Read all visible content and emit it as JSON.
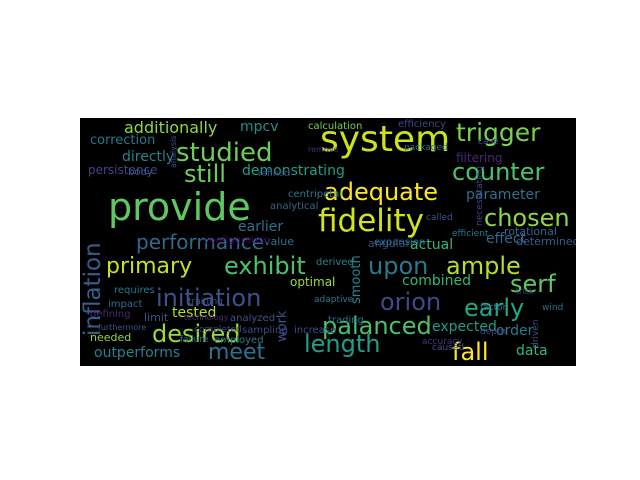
{
  "wordcloud": {
    "background": "#000000",
    "colormap": "viridis",
    "words": [
      {
        "text": "system",
        "color": "#cde11d"
      },
      {
        "text": "provide",
        "color": "#5ec962"
      },
      {
        "text": "fidelity",
        "color": "#d2e21b"
      },
      {
        "text": "trigger",
        "color": "#7ad151"
      },
      {
        "text": "studied",
        "color": "#6ccd5a"
      },
      {
        "text": "counter",
        "color": "#4ac16d"
      },
      {
        "text": "adequate",
        "color": "#fde725"
      },
      {
        "text": "chosen",
        "color": "#90d743"
      },
      {
        "text": "still",
        "color": "#6ece58"
      },
      {
        "text": "performance",
        "color": "#31688e"
      },
      {
        "text": "primary",
        "color": "#c8e020"
      },
      {
        "text": "exhibit",
        "color": "#4ac16d"
      },
      {
        "text": "upon",
        "color": "#2a788e"
      },
      {
        "text": "ample",
        "color": "#b5de2b"
      },
      {
        "text": "serf",
        "color": "#5ec962"
      },
      {
        "text": "initiation",
        "color": "#3b528b"
      },
      {
        "text": "orion",
        "color": "#3e4989"
      },
      {
        "text": "early",
        "color": "#22a884"
      },
      {
        "text": "palanced",
        "color": "#4ac16d"
      },
      {
        "text": "desired",
        "color": "#9bd93c"
      },
      {
        "text": "length",
        "color": "#1f9e89"
      },
      {
        "text": "meet",
        "color": "#2c728e"
      },
      {
        "text": "fall",
        "color": "#fde725"
      },
      {
        "text": "inflation",
        "color": "#355f8d"
      },
      {
        "text": "additionally",
        "color": "#8ed645"
      },
      {
        "text": "mpcv",
        "color": "#21918c"
      },
      {
        "text": "directly",
        "color": "#26828e"
      },
      {
        "text": "correction",
        "color": "#2a788e"
      },
      {
        "text": "demonstrating",
        "color": "#1f9e89"
      },
      {
        "text": "parameter",
        "color": "#2c728e"
      },
      {
        "text": "filtering",
        "color": "#482878"
      },
      {
        "text": "earlier",
        "color": "#2c728e"
      },
      {
        "text": "actual",
        "color": "#35b779"
      },
      {
        "text": "effect",
        "color": "#31688e"
      },
      {
        "text": "smooth",
        "color": "#26828e"
      },
      {
        "text": "combined",
        "color": "#35b779"
      },
      {
        "text": "tested",
        "color": "#b5de2b"
      },
      {
        "text": "expected",
        "color": "#1f9e89"
      },
      {
        "text": "order",
        "color": "#2a788e"
      },
      {
        "text": "data",
        "color": "#35b779"
      },
      {
        "text": "outperforms",
        "color": "#26828e"
      },
      {
        "text": "optimal",
        "color": "#a2da37"
      },
      {
        "text": "work",
        "color": "#3b528b"
      },
      {
        "text": "value",
        "color": "#2c728e"
      },
      {
        "text": "persistence",
        "color": "#414487"
      },
      {
        "text": "rotational",
        "color": "#31688e"
      },
      {
        "text": "determined",
        "color": "#355f8d"
      },
      {
        "text": "angular",
        "color": "#3e4989"
      },
      {
        "text": "needed",
        "color": "#90d743"
      },
      {
        "text": "limit",
        "color": "#39568c"
      },
      {
        "text": "defining",
        "color": "#482878"
      },
      {
        "text": "requires",
        "color": "#2a788e"
      },
      {
        "text": "impact",
        "color": "#2c728e"
      },
      {
        "text": "derived",
        "color": "#26828e"
      },
      {
        "text": "centripetal",
        "color": "#2a788e"
      },
      {
        "text": "analytical",
        "color": "#31688e"
      },
      {
        "text": "calculation",
        "color": "#7ad151"
      },
      {
        "text": "expansion",
        "color": "#2c728e"
      },
      {
        "text": "efficiency",
        "color": "#414487"
      },
      {
        "text": "called",
        "color": "#3b528b"
      },
      {
        "text": "efficient",
        "color": "#2a788e"
      },
      {
        "text": "increase",
        "color": "#3b528b"
      },
      {
        "text": "trading",
        "color": "#2c728e"
      },
      {
        "text": "sampling",
        "color": "#3e4989"
      },
      {
        "text": "employed",
        "color": "#2a788e"
      },
      {
        "text": "analyzed",
        "color": "#39568c"
      },
      {
        "text": "failure",
        "color": "#2c728e"
      },
      {
        "text": "completed",
        "color": "#414487"
      },
      {
        "text": "training",
        "color": "#3b528b"
      },
      {
        "text": "body",
        "color": "#39568c"
      },
      {
        "text": "refined",
        "color": "#3e4989"
      },
      {
        "text": "technology",
        "color": "#472d7b"
      },
      {
        "text": "accuracy",
        "color": "#46337f"
      },
      {
        "text": "caused",
        "color": "#3b528b"
      },
      {
        "text": "factor",
        "color": "#2c728e"
      },
      {
        "text": "depth",
        "color": "#3e4989"
      },
      {
        "text": "wind",
        "color": "#2c728e"
      },
      {
        "text": "driven",
        "color": "#39568c"
      },
      {
        "text": "adaptive",
        "color": "#2a788e"
      },
      {
        "text": "packaged",
        "color": "#2c728e"
      },
      {
        "text": "case",
        "color": "#3b528b"
      },
      {
        "text": "necessitating",
        "color": "#414487"
      },
      {
        "text": "trick",
        "color": "#3e4989"
      },
      {
        "text": "remove",
        "color": "#472d7b"
      },
      {
        "text": "furthermore",
        "color": "#39568c"
      },
      {
        "text": "analysis",
        "color": "#3b528b"
      },
      {
        "text": "configuration",
        "color": "#440154"
      }
    ]
  }
}
